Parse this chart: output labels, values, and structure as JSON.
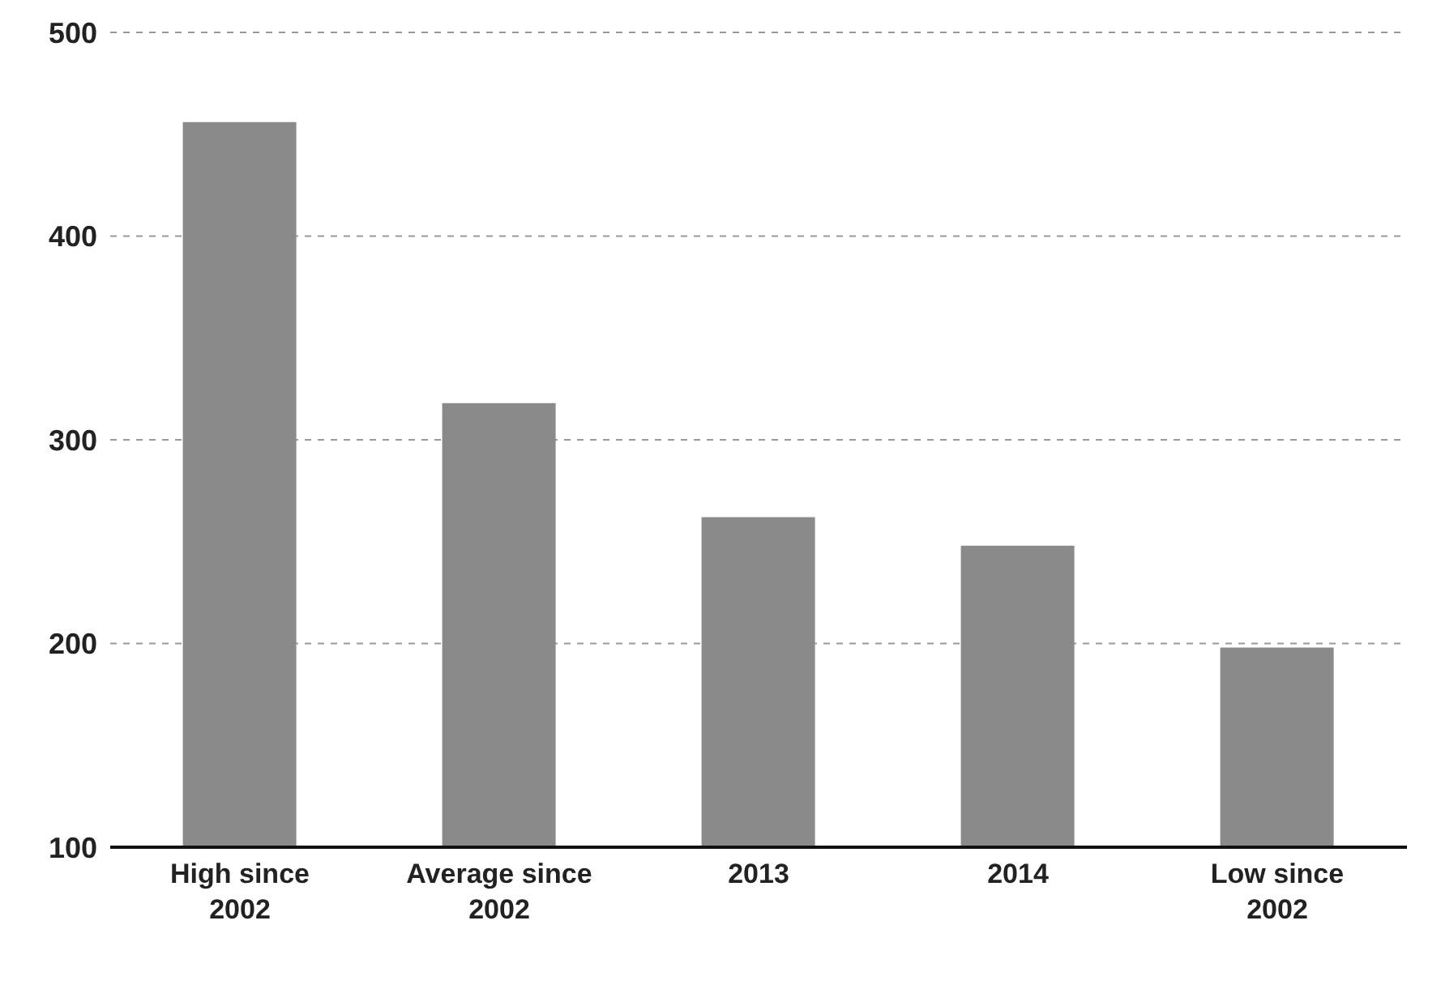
{
  "chart_data": {
    "type": "bar",
    "categories": [
      "High since 2002",
      "Average since 2002",
      "2013",
      "2014",
      "Low since 2002"
    ],
    "values": [
      456,
      318,
      262,
      248,
      198
    ],
    "color": "#8a8a8a",
    "ylim": [
      100,
      500
    ],
    "yticks": [
      100,
      200,
      300,
      400,
      500
    ],
    "grid": "y"
  }
}
